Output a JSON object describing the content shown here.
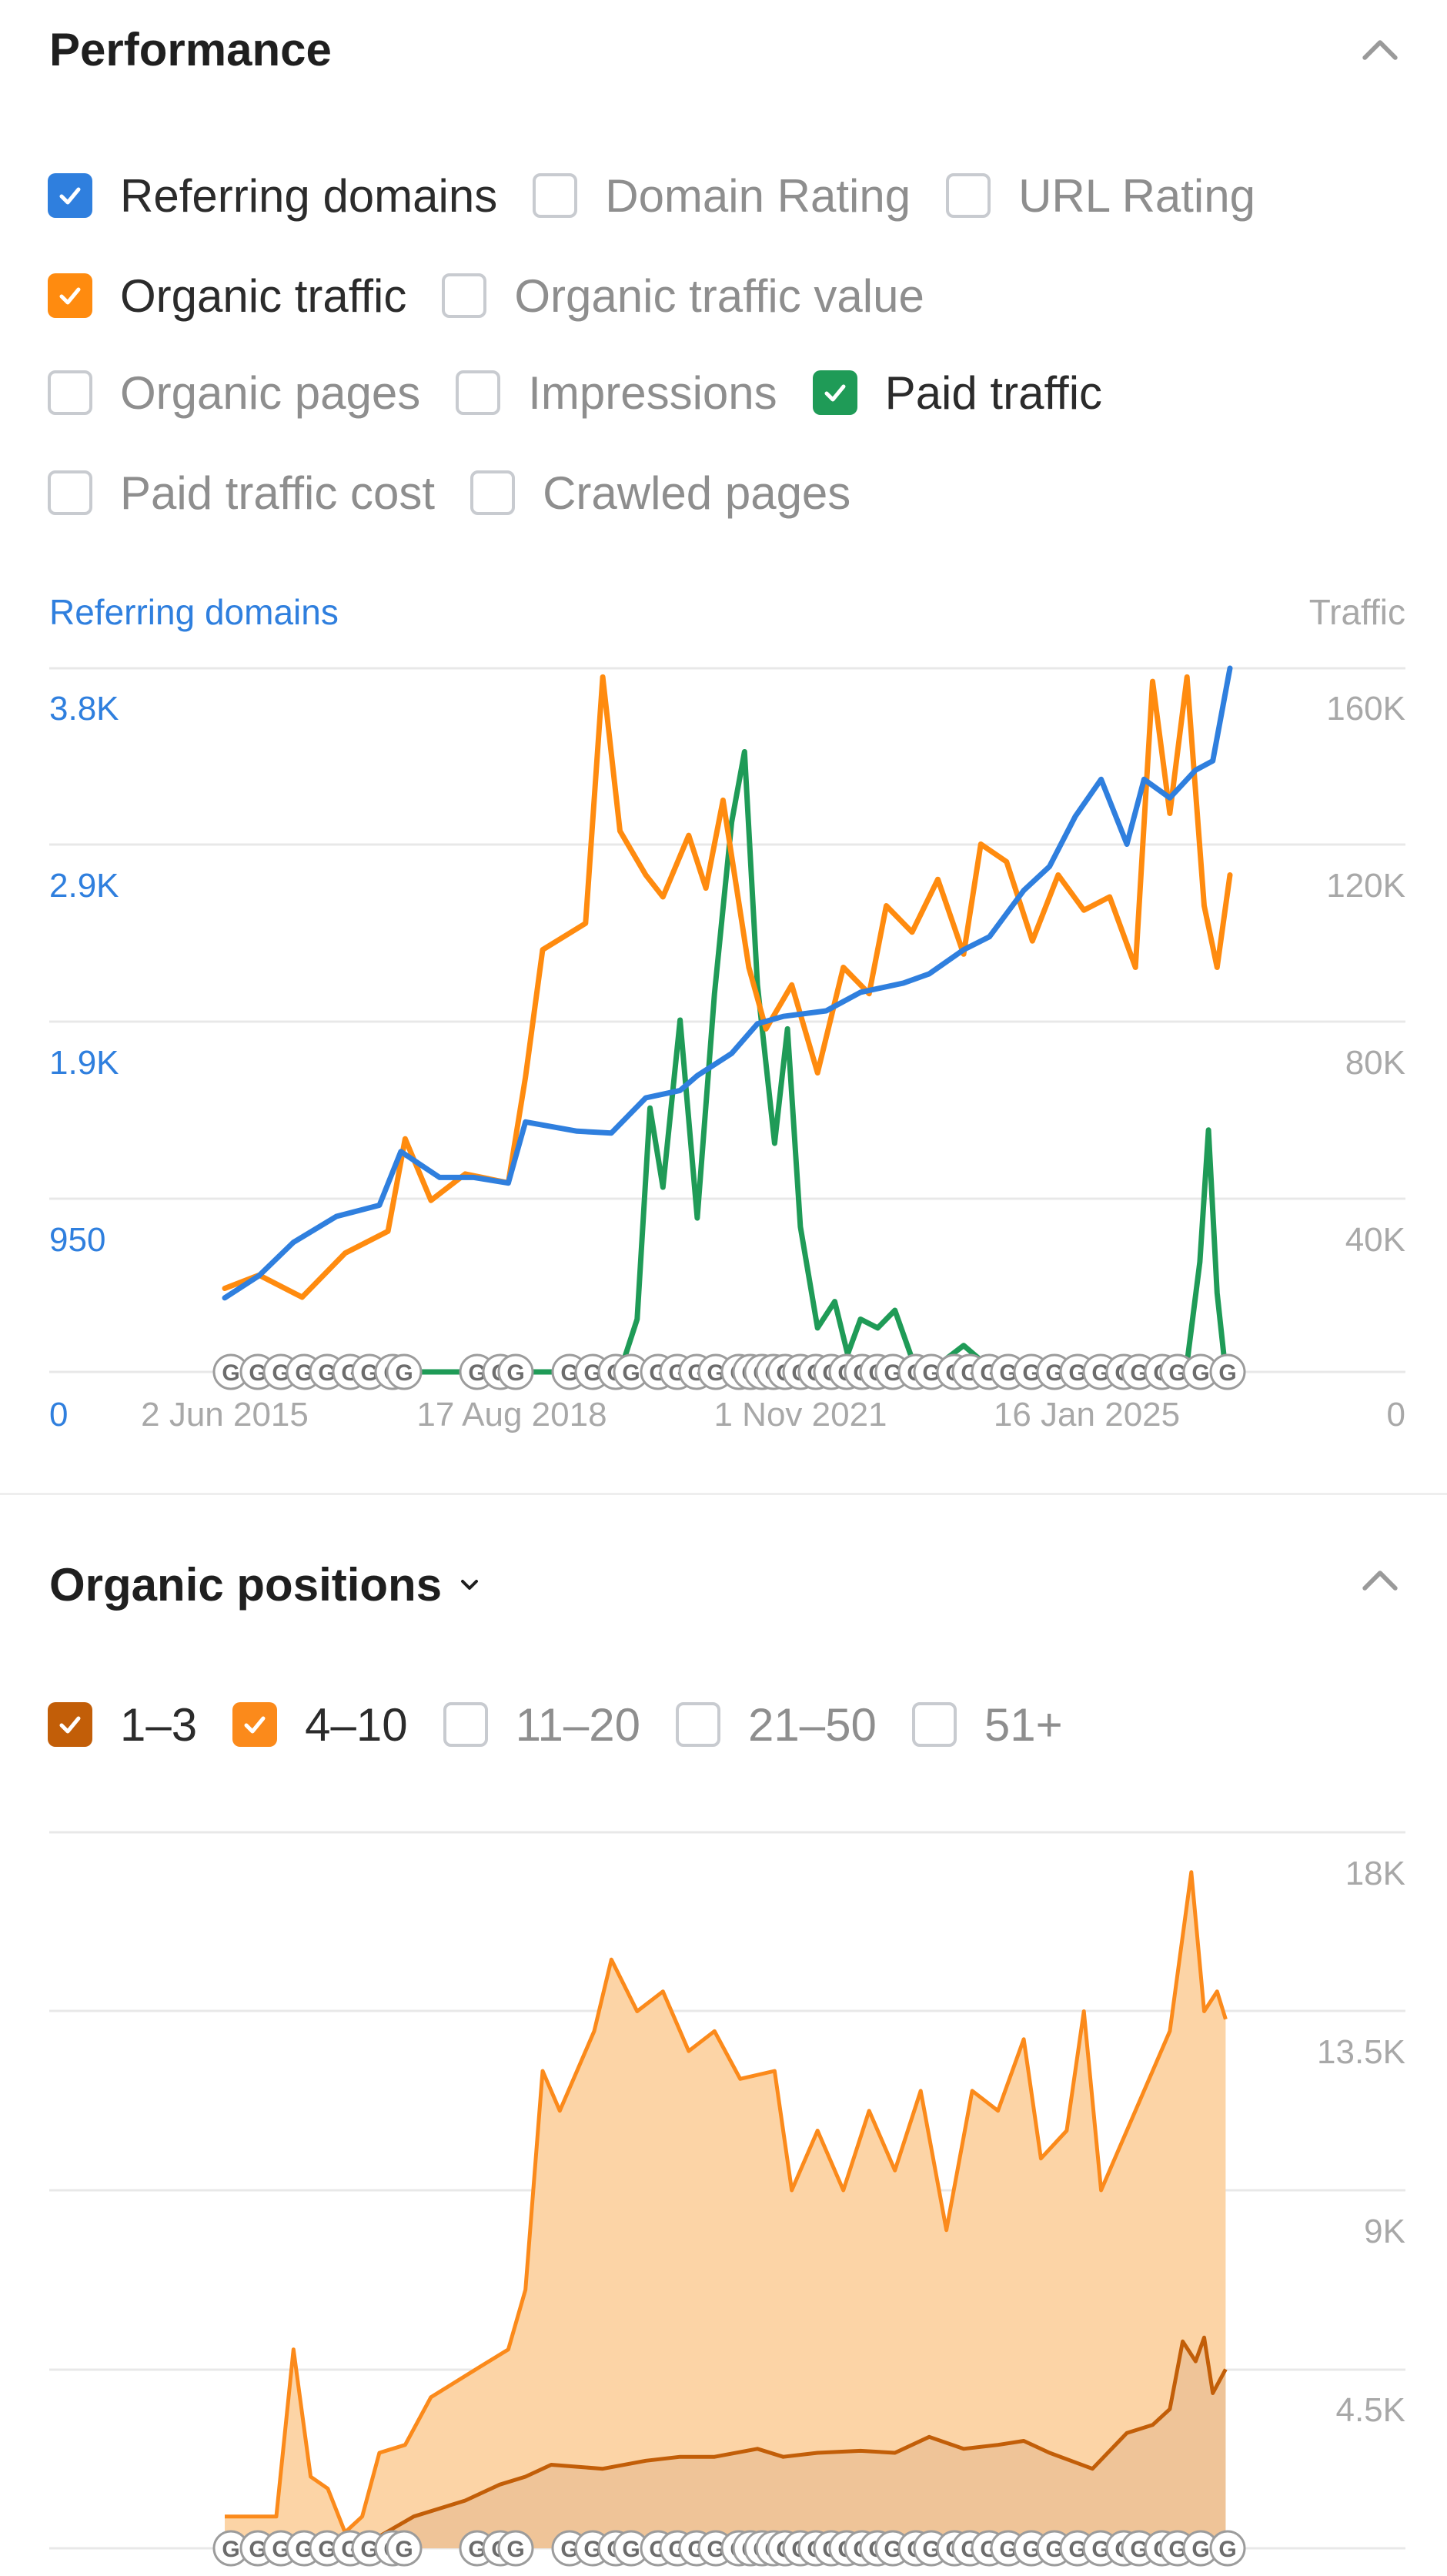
{
  "colors": {
    "referring_domains": "#2f7fde",
    "organic_traffic": "#ff8b0f",
    "paid_traffic": "#1f9b57",
    "pos_1_3": "#c25e08",
    "pos_4_10": "#fb8a1b",
    "grid": "#e8e8e8"
  },
  "performance": {
    "title": "Performance",
    "options": [
      {
        "label": "Referring domains",
        "checked": true,
        "color": "#2f7fde"
      },
      {
        "label": "Domain Rating",
        "checked": false
      },
      {
        "label": "URL Rating",
        "checked": false
      },
      {
        "label": "Organic traffic",
        "checked": true,
        "color": "#ff8b0f"
      },
      {
        "label": "Organic traffic value",
        "checked": false
      },
      {
        "label": "Organic pages",
        "checked": false
      },
      {
        "label": "Impressions",
        "checked": false
      },
      {
        "label": "Paid traffic",
        "checked": true,
        "color": "#1f9b57"
      },
      {
        "label": "Paid traffic cost",
        "checked": false
      },
      {
        "label": "Crawled pages",
        "checked": false
      }
    ],
    "left_axis_title": "Referring domains",
    "right_axis_title": "Traffic"
  },
  "organic_positions": {
    "title": "Organic positions",
    "options": [
      {
        "label": "1–3",
        "checked": true,
        "color": "#c25e08"
      },
      {
        "label": "4–10",
        "checked": true,
        "color": "#fb8a1b"
      },
      {
        "label": "11–20",
        "checked": false
      },
      {
        "label": "21–50",
        "checked": false
      },
      {
        "label": "51+",
        "checked": false
      }
    ]
  },
  "chart_data": [
    {
      "type": "line",
      "x_ticks": [
        "2 Jun 2015",
        "17 Aug 2018",
        "1 Nov 2021",
        "16 Jan 2025"
      ],
      "y_left": {
        "title": "Referring domains",
        "ticks": [
          "0",
          "950",
          "1.9K",
          "2.9K",
          "3.8K"
        ],
        "range": [
          0,
          3800
        ]
      },
      "y_right": {
        "title": "Traffic",
        "ticks": [
          "0",
          "40K",
          "80K",
          "120K",
          "160K"
        ],
        "range": [
          0,
          160000
        ]
      },
      "grid": true,
      "series": [
        {
          "name": "Referring domains",
          "axis": "left",
          "color": "#2f7fde",
          "x": [
            2015.4,
            2015.8,
            2016.2,
            2016.7,
            2017.2,
            2017.45,
            2017.9,
            2018.3,
            2018.7,
            2018.9,
            2019.5,
            2019.9,
            2020.3,
            2020.7,
            2020.9,
            2021.3,
            2021.6,
            2021.9,
            2022.4,
            2022.8,
            2023.3,
            2023.6,
            2024.0,
            2024.3,
            2024.7,
            2025.0,
            2025.3,
            2025.6,
            2025.9,
            2026.1,
            2026.4,
            2026.7,
            2026.9,
            2027.1
          ],
          "y": [
            400,
            520,
            700,
            840,
            900,
            1190,
            1050,
            1050,
            1020,
            1350,
            1300,
            1290,
            1480,
            1520,
            1600,
            1720,
            1880,
            1920,
            1950,
            2050,
            2100,
            2150,
            2280,
            2350,
            2600,
            2730,
            3000,
            3200,
            2850,
            3200,
            3100,
            3250,
            3300,
            3800
          ]
        },
        {
          "name": "Organic traffic",
          "axis": "right",
          "color": "#ff8b0f",
          "x": [
            2015.4,
            2015.8,
            2016.3,
            2016.8,
            2017.3,
            2017.5,
            2017.8,
            2018.2,
            2018.7,
            2018.9,
            2019.1,
            2019.6,
            2019.8,
            2020.0,
            2020.3,
            2020.5,
            2020.8,
            2021.0,
            2021.2,
            2021.5,
            2021.7,
            2022.0,
            2022.3,
            2022.6,
            2022.9,
            2023.1,
            2023.4,
            2023.7,
            2024.0,
            2024.2,
            2024.5,
            2024.8,
            2025.1,
            2025.4,
            2025.7,
            2026.0,
            2026.2,
            2026.4,
            2026.6,
            2026.8,
            2026.95,
            2027.1
          ],
          "y": [
            19000,
            22000,
            17000,
            27000,
            32000,
            53000,
            39000,
            45000,
            43000,
            67000,
            96000,
            102000,
            158000,
            123000,
            113000,
            108000,
            122000,
            110000,
            130000,
            92000,
            78000,
            88000,
            68000,
            92000,
            86000,
            106000,
            100000,
            112000,
            95000,
            120000,
            116000,
            98000,
            113000,
            105000,
            108000,
            92000,
            157000,
            127000,
            158000,
            106000,
            92000,
            113000
          ]
        },
        {
          "name": "Paid traffic",
          "axis": "right",
          "color": "#1f9b57",
          "x": [
            2015.4,
            2020.0,
            2020.2,
            2020.35,
            2020.5,
            2020.7,
            2020.9,
            2021.1,
            2021.3,
            2021.45,
            2021.6,
            2021.8,
            2021.95,
            2022.1,
            2022.3,
            2022.5,
            2022.65,
            2022.8,
            2023.0,
            2023.2,
            2023.4,
            2023.7,
            2024.0,
            2024.3,
            2024.6,
            2025.0,
            2025.4,
            2025.8,
            2026.2,
            2026.6,
            2026.75,
            2026.85,
            2026.95,
            2027.05
          ],
          "y": [
            0,
            0,
            12000,
            60000,
            42000,
            80000,
            35000,
            86000,
            125000,
            141000,
            88000,
            52000,
            78000,
            33000,
            10000,
            16000,
            4000,
            12000,
            10000,
            14000,
            3000,
            1500,
            6000,
            1000,
            500,
            1500,
            500,
            800,
            500,
            2000,
            25000,
            55000,
            18000,
            0
          ]
        }
      ]
    },
    {
      "type": "area",
      "x_ticks": [],
      "y_right": {
        "ticks": [
          "4.5K",
          "9K",
          "13.5K",
          "18K"
        ],
        "range": [
          0,
          18000
        ]
      },
      "grid": true,
      "series": [
        {
          "name": "1–3",
          "color": "#c25e08",
          "x": [
            2015.4,
            2016.0,
            2016.5,
            2017.2,
            2017.6,
            2018.2,
            2018.6,
            2018.9,
            2019.2,
            2019.8,
            2020.3,
            2020.7,
            2021.1,
            2021.6,
            2021.9,
            2022.3,
            2022.8,
            2023.2,
            2023.6,
            2024.0,
            2024.4,
            2024.7,
            2025.0,
            2025.5,
            2025.9,
            2026.2,
            2026.4,
            2026.55,
            2026.7,
            2026.8,
            2026.9,
            2027.05
          ],
          "y": [
            0,
            0,
            0,
            300,
            800,
            1200,
            1600,
            1800,
            2100,
            2000,
            2200,
            2300,
            2300,
            2500,
            2300,
            2400,
            2450,
            2400,
            2800,
            2500,
            2600,
            2700,
            2400,
            2000,
            2900,
            3100,
            3500,
            5200,
            4700,
            5300,
            3900,
            4500
          ]
        },
        {
          "name": "4–10",
          "color": "#fb8a1b",
          "x": [
            2015.4,
            2016.0,
            2016.2,
            2016.4,
            2016.6,
            2016.8,
            2017.0,
            2017.2,
            2017.5,
            2017.8,
            2018.1,
            2018.4,
            2018.7,
            2018.9,
            2019.1,
            2019.3,
            2019.7,
            2019.9,
            2020.2,
            2020.5,
            2020.8,
            2021.1,
            2021.4,
            2021.8,
            2022.0,
            2022.3,
            2022.6,
            2022.9,
            2023.2,
            2023.5,
            2023.8,
            2024.1,
            2024.4,
            2024.7,
            2024.9,
            2025.2,
            2025.4,
            2025.6,
            2025.8,
            2026.1,
            2026.4,
            2026.65,
            2026.8,
            2026.95,
            2027.05
          ],
          "y": [
            800,
            800,
            5000,
            1800,
            1500,
            400,
            800,
            2400,
            2600,
            3800,
            4200,
            4600,
            5000,
            6500,
            12000,
            11000,
            13000,
            14800,
            13500,
            14000,
            12500,
            13000,
            11800,
            12000,
            9000,
            10500,
            9000,
            11000,
            9500,
            11500,
            8000,
            11500,
            11000,
            12800,
            9800,
            10500,
            13500,
            9000,
            10000,
            11500,
            13000,
            17000,
            13500,
            14000,
            13300
          ]
        }
      ]
    }
  ]
}
